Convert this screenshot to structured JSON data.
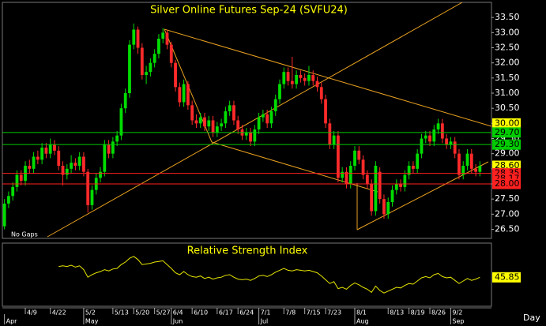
{
  "chart_data": [
    {
      "type": "candlestick",
      "title": "Silver Online Futures Sep-24 (SVFU24)",
      "annotation": "No Gaps",
      "period": "Day",
      "categories": [
        null,
        null,
        null,
        null,
        null,
        "4/9",
        null,
        null,
        null,
        null,
        null,
        "4/22",
        null,
        null,
        null,
        null,
        null,
        null,
        null,
        "5/2",
        null,
        null,
        null,
        null,
        null,
        null,
        "5/13",
        null,
        null,
        null,
        null,
        "5/20",
        null,
        null,
        null,
        null,
        "5/27",
        null,
        null,
        null,
        "6/4",
        null,
        null,
        null,
        null,
        "6/10",
        null,
        null,
        null,
        null,
        null,
        "6/17",
        null,
        null,
        null,
        null,
        "6/24",
        null,
        null,
        null,
        null,
        "7/1",
        null,
        null,
        null,
        null,
        null,
        "7/8",
        null,
        null,
        null,
        null,
        "7/15",
        null,
        null,
        null,
        null,
        "7/23",
        null,
        null,
        null,
        null,
        null,
        null,
        "8/1",
        null,
        null,
        null,
        null,
        null,
        null,
        null,
        "8/13",
        null,
        null,
        null,
        null,
        "8/19",
        null,
        null,
        null,
        null,
        "8/26",
        null,
        null,
        null,
        null,
        "9/2",
        null,
        null,
        null,
        null,
        null,
        null,
        null
      ],
      "months": [
        "Apr",
        null,
        null,
        null,
        null,
        null,
        null,
        null,
        null,
        null,
        null,
        null,
        null,
        null,
        null,
        null,
        null,
        null,
        null,
        "May",
        null,
        null,
        null,
        null,
        null,
        null,
        null,
        null,
        null,
        null,
        null,
        null,
        null,
        null,
        null,
        null,
        null,
        null,
        null,
        null,
        "Jun",
        null,
        null,
        null,
        null,
        null,
        null,
        null,
        null,
        null,
        null,
        null,
        null,
        null,
        null,
        null,
        null,
        null,
        null,
        null,
        null,
        "Jul",
        null,
        null,
        null,
        null,
        null,
        null,
        null,
        null,
        null,
        null,
        null,
        null,
        null,
        null,
        null,
        null,
        null,
        null,
        null,
        null,
        null,
        null,
        "Aug",
        null,
        null,
        null,
        null,
        null,
        null,
        null,
        null,
        null,
        null,
        null,
        null,
        null,
        null,
        null,
        null,
        null,
        null,
        null,
        null,
        null,
        null,
        "Sep",
        null,
        null,
        null,
        null,
        null,
        null,
        null
      ],
      "open": [
        26.6,
        27.35,
        27.6,
        27.9,
        28.3,
        28.1,
        28.6,
        28.5,
        28.9,
        28.8,
        29.2,
        29.0,
        29.3,
        29.1,
        28.6,
        28.3,
        28.5,
        28.7,
        28.6,
        28.9,
        28.4,
        27.3,
        27.8,
        28.2,
        28.4,
        29.3,
        29.0,
        29.4,
        29.6,
        30.5,
        31.0,
        32.6,
        33.1,
        32.5,
        31.6,
        31.7,
        32.0,
        32.3,
        32.8,
        33.0,
        32.6,
        32.0,
        31.2,
        30.7,
        31.3,
        30.6,
        30.1,
        30.0,
        30.2,
        29.9,
        30.1,
        29.7,
        29.9,
        30.0,
        30.4,
        30.6,
        30.1,
        29.8,
        29.6,
        29.7,
        29.4,
        29.8,
        30.2,
        30.3,
        30.0,
        30.4,
        30.8,
        31.3,
        31.7,
        31.4,
        31.3,
        31.6,
        31.5,
        31.4,
        31.6,
        31.4,
        31.2,
        30.8,
        30.0,
        29.3,
        29.6,
        28.2,
        28.4,
        28.0,
        28.6,
        29.1,
        28.8,
        28.3,
        28.0,
        27.1,
        28.4,
        27.5,
        27.0,
        27.4,
        27.8,
        28.0,
        27.9,
        28.3,
        28.6,
        28.5,
        29.0,
        29.5,
        29.6,
        29.4,
        29.8,
        30.0,
        29.5,
        29.3,
        29.4,
        29.0,
        28.3,
        28.6,
        29.0,
        28.5,
        28.4
      ],
      "high": [
        27.5,
        27.75,
        28.05,
        28.45,
        28.45,
        28.75,
        28.8,
        29.05,
        29.1,
        29.35,
        29.35,
        29.5,
        29.45,
        29.25,
        28.75,
        28.65,
        28.95,
        28.85,
        29.05,
        29.05,
        28.5,
        27.95,
        28.35,
        28.55,
        29.45,
        29.45,
        29.55,
        29.75,
        30.65,
        31.15,
        32.75,
        33.3,
        33.2,
        32.65,
        31.9,
        32.15,
        32.45,
        32.95,
        33.15,
        33.1,
        32.7,
        32.1,
        31.35,
        31.45,
        31.4,
        30.75,
        30.3,
        30.35,
        30.35,
        30.25,
        30.25,
        30.05,
        30.15,
        30.55,
        30.75,
        30.75,
        30.25,
        29.95,
        29.85,
        29.85,
        29.95,
        30.35,
        30.45,
        30.45,
        30.55,
        30.95,
        31.45,
        31.85,
        31.85,
        32.2,
        31.75,
        31.75,
        31.65,
        31.9,
        31.75,
        31.55,
        31.35,
        30.95,
        30.15,
        29.75,
        29.75,
        28.55,
        28.55,
        28.75,
        29.25,
        29.25,
        28.95,
        28.45,
        28.15,
        28.75,
        28.55,
        27.65,
        27.55,
        27.95,
        28.15,
        28.15,
        28.45,
        28.75,
        28.75,
        29.15,
        29.65,
        29.75,
        29.75,
        29.95,
        30.15,
        30.15,
        29.65,
        29.55,
        29.55,
        29.15,
        28.75,
        29.15,
        29.15,
        28.65,
        28.75
      ],
      "low": [
        26.5,
        27.2,
        27.45,
        27.75,
        27.95,
        27.95,
        28.35,
        28.35,
        28.65,
        28.65,
        28.85,
        28.85,
        28.95,
        28.45,
        27.95,
        28.15,
        28.35,
        28.45,
        28.45,
        28.25,
        27.05,
        27.15,
        27.65,
        28.05,
        28.25,
        28.85,
        28.85,
        29.25,
        29.45,
        30.35,
        30.85,
        32.45,
        32.3,
        31.45,
        31.3,
        31.55,
        31.85,
        32.15,
        32.65,
        32.45,
        31.85,
        31.05,
        30.55,
        30.55,
        30.45,
        29.95,
        29.85,
        29.85,
        29.75,
        29.75,
        29.55,
        29.55,
        29.75,
        29.85,
        30.25,
        29.95,
        29.65,
        29.45,
        29.45,
        29.25,
        29.25,
        29.65,
        30.05,
        29.85,
        29.85,
        30.25,
        30.65,
        31.15,
        31.25,
        31.15,
        31.15,
        31.35,
        31.25,
        31.25,
        31.25,
        31.05,
        30.65,
        29.85,
        29.15,
        29.15,
        28.05,
        28.05,
        27.85,
        27.85,
        28.45,
        28.65,
        28.15,
        27.85,
        26.95,
        26.95,
        27.35,
        26.85,
        26.85,
        27.25,
        27.65,
        27.75,
        27.75,
        28.15,
        28.35,
        28.35,
        28.85,
        29.35,
        29.25,
        29.25,
        29.65,
        29.35,
        29.15,
        29.15,
        28.85,
        28.15,
        28.15,
        28.45,
        28.35,
        28.25,
        28.25
      ],
      "close": [
        27.35,
        27.6,
        27.9,
        28.3,
        28.1,
        28.6,
        28.5,
        28.9,
        28.8,
        29.2,
        29.0,
        29.3,
        29.1,
        28.6,
        28.3,
        28.5,
        28.7,
        28.6,
        28.9,
        28.4,
        27.3,
        27.8,
        28.2,
        28.4,
        29.3,
        29.0,
        29.4,
        29.6,
        30.5,
        31.0,
        32.6,
        33.1,
        32.5,
        31.6,
        31.7,
        32.0,
        32.3,
        32.8,
        33.0,
        32.6,
        32.0,
        31.2,
        30.7,
        31.3,
        30.6,
        30.1,
        30.0,
        30.2,
        29.9,
        30.1,
        29.7,
        29.9,
        30.0,
        30.4,
        30.6,
        30.1,
        29.8,
        29.6,
        29.7,
        29.4,
        29.8,
        30.2,
        30.3,
        30.0,
        30.4,
        30.8,
        31.3,
        31.7,
        31.4,
        31.3,
        31.6,
        31.5,
        31.4,
        31.6,
        31.4,
        31.2,
        30.8,
        30.0,
        29.3,
        29.6,
        28.2,
        28.4,
        28.0,
        28.6,
        29.1,
        28.8,
        28.3,
        28.0,
        27.1,
        28.6,
        27.5,
        27.0,
        27.4,
        27.8,
        28.0,
        27.9,
        28.3,
        28.6,
        28.5,
        29.0,
        29.5,
        29.6,
        29.4,
        29.8,
        30.0,
        29.5,
        29.3,
        29.4,
        29.0,
        28.3,
        28.6,
        29.0,
        28.5,
        28.4,
        28.6
      ],
      "up_color": "#00dd00",
      "down_color": "#ff2a2a",
      "ylim": [
        26.2,
        34.0
      ],
      "yticks": [
        {
          "value": 26.5,
          "label": "26.50"
        },
        {
          "value": 27,
          "label": "27.00"
        },
        {
          "value": 27.5,
          "label": "27.50"
        },
        {
          "value": 28,
          "label": "28.00"
        },
        {
          "value": 28.5,
          "label": "28.50"
        },
        {
          "value": 29,
          "label": "29.00"
        },
        {
          "value": 29.5,
          "label": "29.50"
        },
        {
          "value": 30,
          "label": "30.00"
        },
        {
          "value": 30.5,
          "label": "30.50"
        },
        {
          "value": 31,
          "label": "31.00"
        },
        {
          "value": 31.5,
          "label": "31.50"
        },
        {
          "value": 32,
          "label": "32.00"
        },
        {
          "value": 32.5,
          "label": "32.50"
        },
        {
          "value": 33,
          "label": "33.00"
        },
        {
          "value": 33.5,
          "label": "33.50"
        }
      ],
      "price_levels": [
        {
          "value": 30,
          "label": "30.00",
          "color": "#ffff00",
          "line": false
        },
        {
          "value": 29.7,
          "label": "29.70",
          "color": "#00cc00",
          "line": true
        },
        {
          "value": 29.3,
          "label": "29.30",
          "color": "#00cc00",
          "line": true
        },
        {
          "value": 28.6,
          "label": "28.60",
          "color": "#ffff00",
          "line": false
        },
        {
          "value": 28.35,
          "label": "28.35",
          "color": "#ff2020",
          "line": true
        },
        {
          "value": 28.17,
          "label": "28.17",
          "color": "#ff2020",
          "line": false
        },
        {
          "value": 28,
          "label": "28.00",
          "color": "#ff2020",
          "line": true
        }
      ]
    },
    {
      "type": "line",
      "title": "Relative Strength Index",
      "color": "#e6e600",
      "ylim": [
        0,
        100
      ],
      "values": [
        null,
        null,
        null,
        null,
        null,
        null,
        null,
        null,
        null,
        null,
        null,
        null,
        null,
        63,
        64,
        63,
        65,
        62,
        64,
        58,
        46,
        50,
        53,
        55,
        58,
        56,
        59,
        60,
        66,
        70,
        76,
        79,
        74,
        66,
        67,
        68,
        70,
        71,
        72,
        66,
        60,
        53,
        50,
        55,
        50,
        47,
        46,
        48,
        44,
        46,
        43,
        45,
        46,
        49,
        50,
        46,
        43,
        42,
        43,
        41,
        44,
        48,
        49,
        47,
        50,
        54,
        57,
        60,
        57,
        56,
        58,
        57,
        56,
        57,
        55,
        53,
        48,
        42,
        36,
        39,
        28,
        30,
        27,
        33,
        37,
        34,
        30,
        27,
        22,
        32,
        25,
        21,
        24,
        27,
        30,
        29,
        33,
        36,
        35,
        40,
        45,
        47,
        45,
        50,
        52,
        47,
        45,
        46,
        41,
        36,
        40,
        44,
        41,
        43,
        45.85
      ]
    }
  ]
}
